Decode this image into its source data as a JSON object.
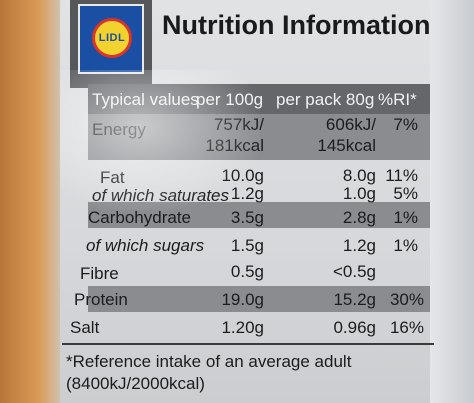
{
  "panel": {
    "logo_text": "LIDL",
    "title": "Nutrition Information",
    "headers": [
      "Typical values",
      "per 100g",
      "per pack 80g",
      "%RI*"
    ],
    "rows": [
      {
        "label": "Energy",
        "per100": "757kJ/",
        "per100_2": "181kcal",
        "pack": "606kJ/",
        "pack_2": "145kcal",
        "ri": "7%"
      },
      {
        "label": "Fat",
        "per100": "10.0g",
        "pack": "8.0g",
        "ri": "11%"
      },
      {
        "label": "of which saturates",
        "per100": "1.2g",
        "pack": "1.0g",
        "ri": "5%"
      },
      {
        "label": "Carbohydrate",
        "per100": "3.5g",
        "pack": "2.8g",
        "ri": "1%"
      },
      {
        "label": "of which sugars",
        "per100": "1.5g",
        "pack": "1.2g",
        "ri": "1%"
      },
      {
        "label": "Fibre",
        "per100": "0.5g",
        "pack": "<0.5g",
        "ri": ""
      },
      {
        "label": "Protein",
        "per100": "19.0g",
        "pack": "15.2g",
        "ri": "30%"
      },
      {
        "label": "Salt",
        "per100": "1.20g",
        "pack": "0.96g",
        "ri": "16%"
      }
    ],
    "reference_line1": "*Reference intake of an average adult",
    "reference_line2": "(8400kJ/2000kcal)"
  }
}
